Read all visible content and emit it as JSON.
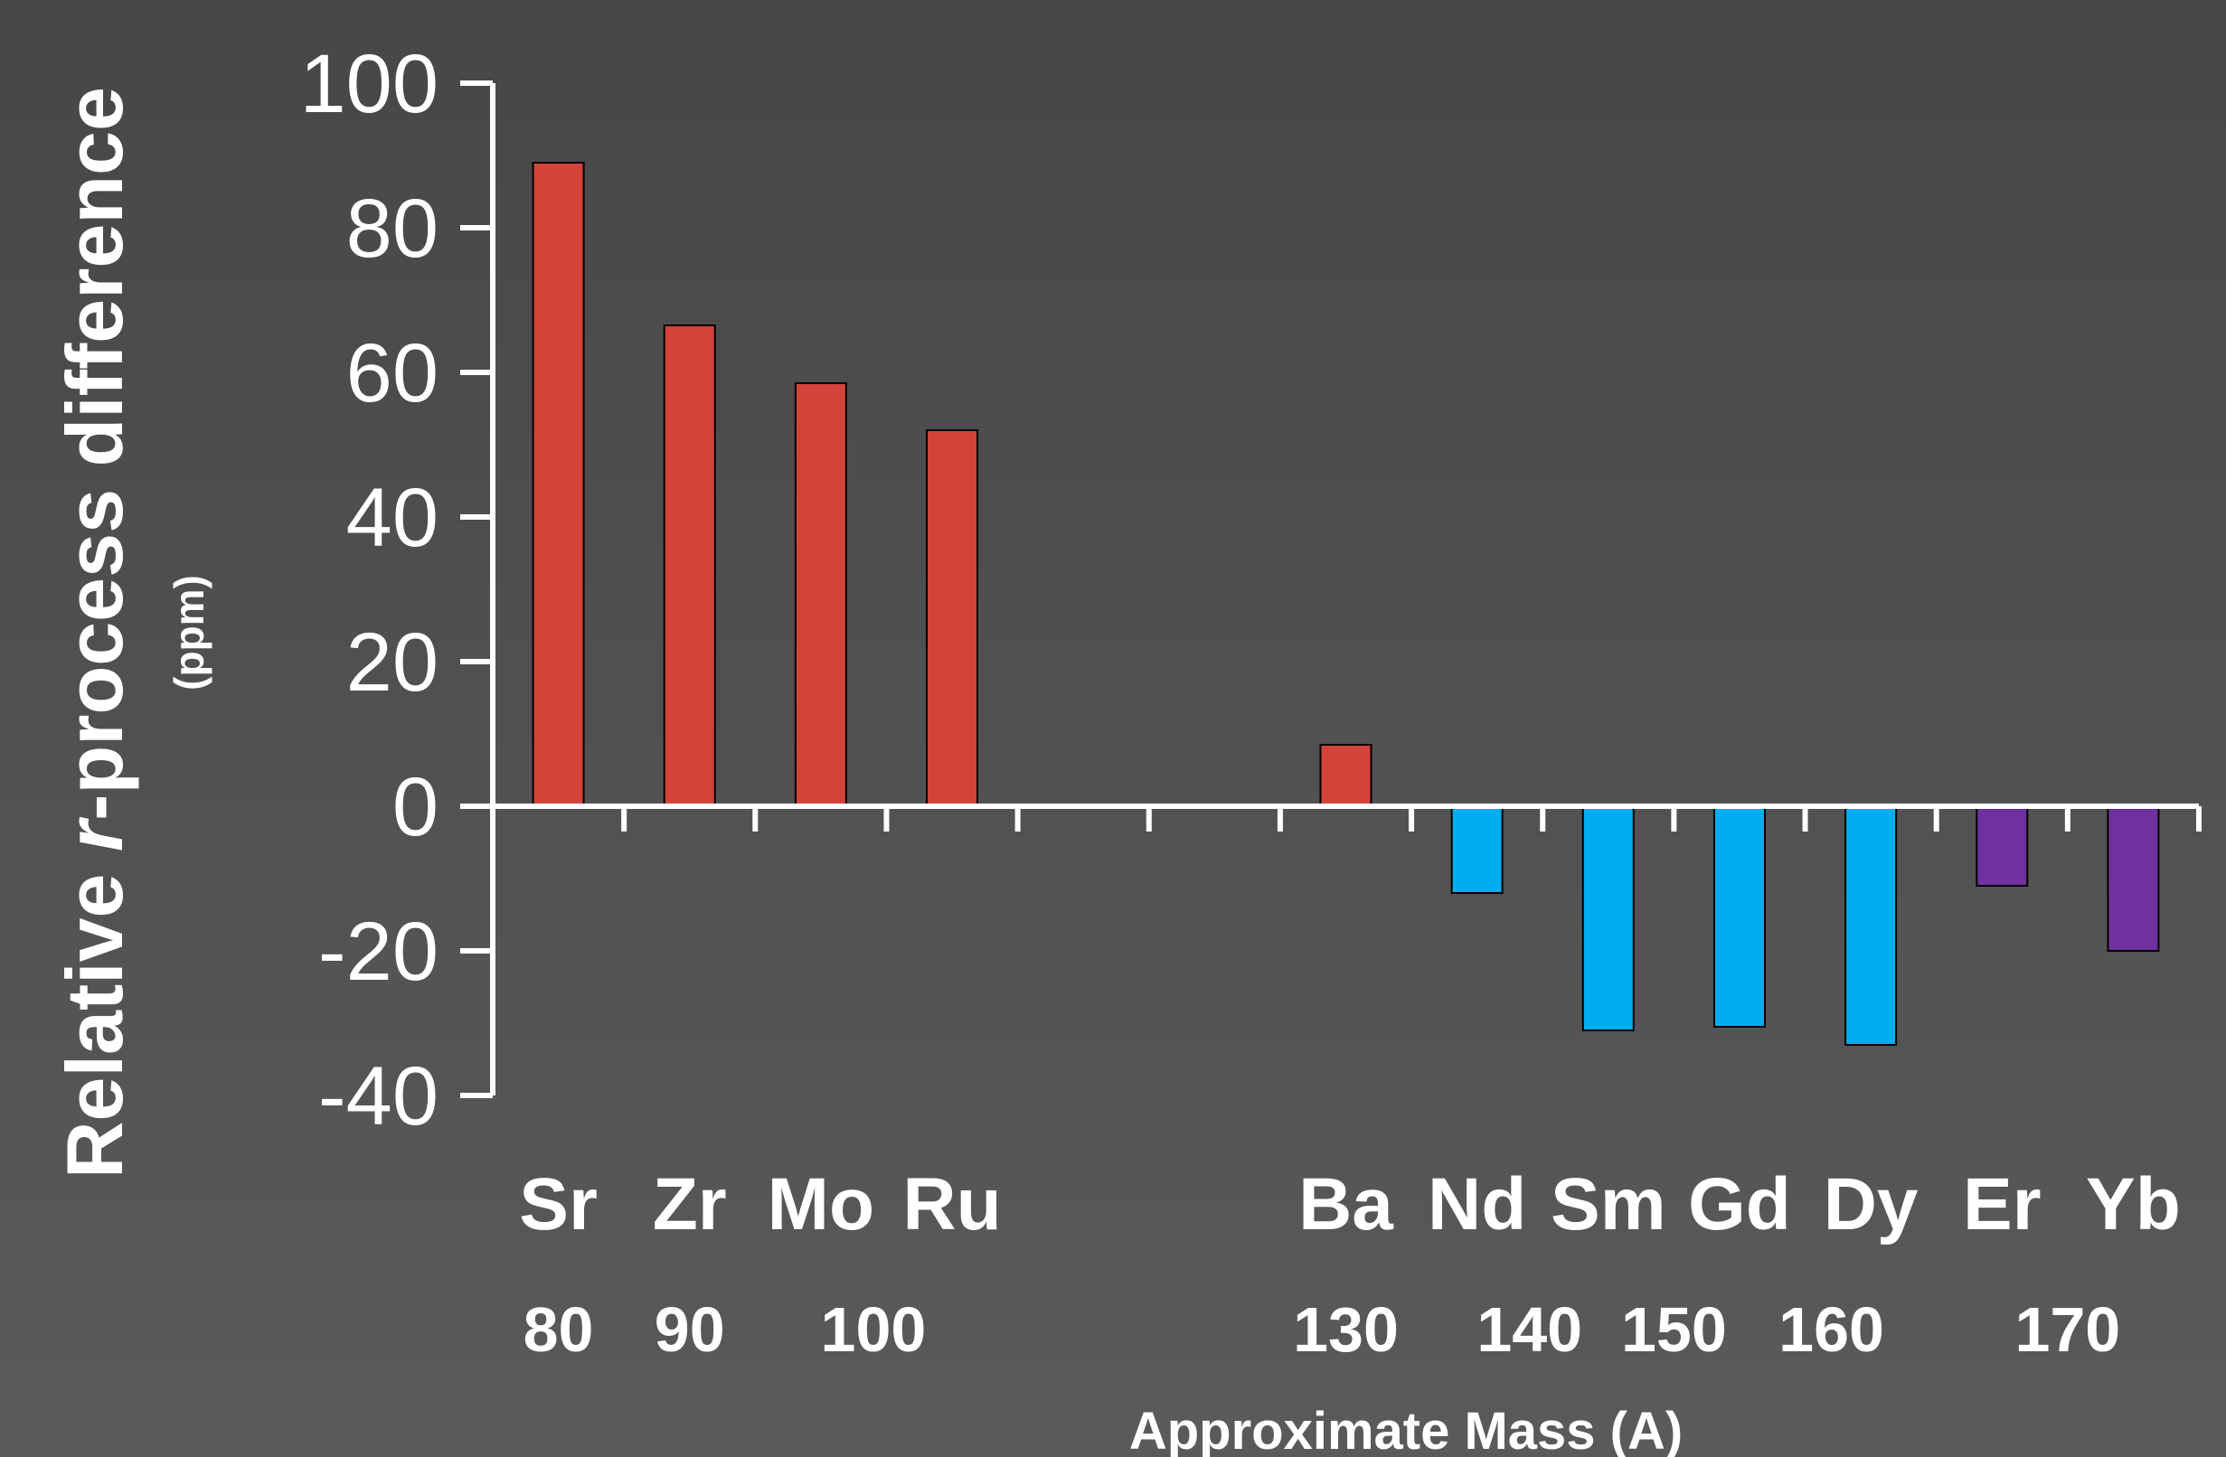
{
  "chart_data": {
    "type": "bar",
    "title": "",
    "ylabel": {
      "prefix": "Relative ",
      "italic": "r",
      "suffix": "-process difference",
      "unit": "(ppm)"
    },
    "xlabel": "Approximate Mass (A)",
    "ylim": [
      -40,
      100
    ],
    "yticks": [
      100,
      80,
      60,
      40,
      20,
      0,
      -20,
      -40
    ],
    "categories": [
      "Sr",
      "Zr",
      "Mo",
      "Ru",
      "",
      "",
      "Ba",
      "Nd",
      "Sm",
      "Gd",
      "Dy",
      "Er",
      "Yb"
    ],
    "values": [
      89,
      66.5,
      58.5,
      52,
      null,
      null,
      8.5,
      -12,
      -31,
      -30.5,
      -33,
      -11,
      -20
    ],
    "colors": [
      "#d4433a",
      "#d4433a",
      "#d4433a",
      "#d4433a",
      null,
      null,
      "#d4433a",
      "#00aeef",
      "#00aeef",
      "#00aeef",
      "#00aeef",
      "#7030a0",
      "#7030a0"
    ],
    "mass_labels": [
      {
        "label": "80",
        "slot": 0
      },
      {
        "label": "90",
        "slot": 1
      },
      {
        "label": "100",
        "slot": 2.4
      },
      {
        "label": "130",
        "slot": 6
      },
      {
        "label": "140",
        "slot": 7.4
      },
      {
        "label": "150",
        "slot": 8.5
      },
      {
        "label": "160",
        "slot": 9.7
      },
      {
        "label": "170",
        "slot": 11.5
      }
    ],
    "grid": false,
    "legend": "none"
  },
  "colors": {
    "axis": "#ffffff",
    "bar_outline": "#000000",
    "light_r_process": "#d4433a",
    "lanthanides": "#00aeef",
    "heavy": "#7030a0"
  }
}
